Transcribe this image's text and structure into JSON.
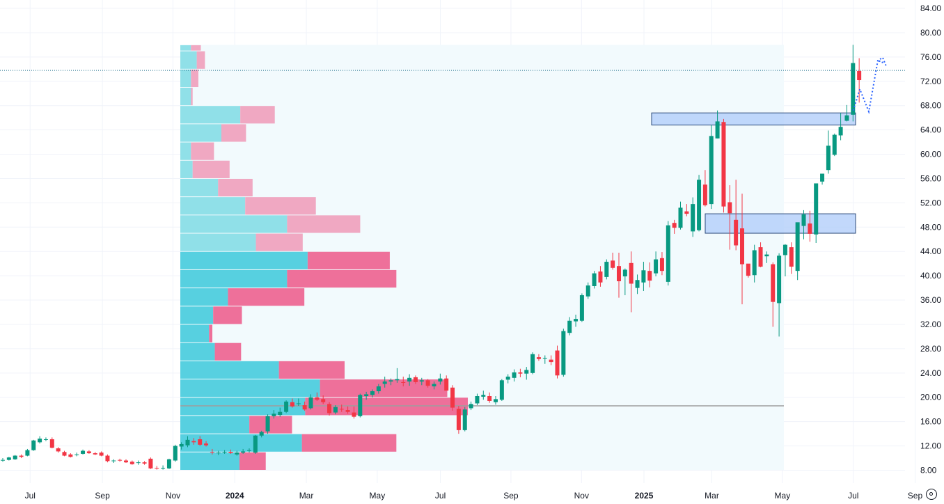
{
  "chart_data": {
    "type": "candlestick",
    "title": "",
    "xlabel": "",
    "ylabel": "",
    "ylim": [
      6,
      86
    ],
    "y_ticks": [
      "8.00",
      "12.00",
      "16.00",
      "20.00",
      "24.00",
      "28.00",
      "32.00",
      "36.00",
      "40.00",
      "44.00",
      "48.00",
      "52.00",
      "56.00",
      "60.00",
      "64.00",
      "68.00",
      "72.00",
      "76.00",
      "80.00",
      "84.00"
    ],
    "x_ticks": [
      {
        "label": "Jul",
        "bold": false,
        "t": 0.13
      },
      {
        "label": "Sep",
        "bold": false,
        "t": 2.27
      },
      {
        "label": "Nov",
        "bold": false,
        "t": 4.36
      },
      {
        "label": "2024",
        "bold": true,
        "t": 6.19
      },
      {
        "label": "Mar",
        "bold": false,
        "t": 8.31
      },
      {
        "label": "May",
        "bold": false,
        "t": 10.41
      },
      {
        "label": "Jul",
        "bold": false,
        "t": 12.28
      },
      {
        "label": "Sep",
        "bold": false,
        "t": 14.37
      },
      {
        "label": "Nov",
        "bold": false,
        "t": 16.46
      },
      {
        "label": "2025",
        "bold": true,
        "t": 18.31
      },
      {
        "label": "Mar",
        "bold": false,
        "t": 20.32
      },
      {
        "label": "May",
        "bold": false,
        "t": 22.41
      },
      {
        "label": "Jul",
        "bold": false,
        "t": 24.51
      },
      {
        "label": "Sep",
        "bold": false,
        "t": 26.34
      }
    ],
    "candles_weekly_ohlc": [
      [
        9.6,
        10.0,
        9.4,
        9.7
      ],
      [
        9.7,
        10.2,
        9.6,
        10.1
      ],
      [
        9.8,
        10.5,
        9.7,
        10.4
      ],
      [
        10.4,
        10.6,
        10.0,
        10.2
      ],
      [
        10.4,
        11.5,
        10.3,
        11.3
      ],
      [
        11.3,
        13.0,
        11.2,
        12.9
      ],
      [
        12.6,
        13.6,
        12.4,
        13.2
      ],
      [
        13.0,
        13.4,
        12.8,
        13.1
      ],
      [
        13.1,
        13.4,
        11.6,
        11.7
      ],
      [
        11.6,
        11.8,
        10.9,
        11.1
      ],
      [
        11.0,
        11.2,
        10.3,
        10.4
      ],
      [
        10.6,
        10.8,
        10.1,
        10.2
      ],
      [
        10.5,
        10.9,
        10.3,
        10.6
      ],
      [
        10.7,
        11.4,
        10.6,
        11.2
      ],
      [
        11.1,
        11.3,
        10.7,
        10.8
      ],
      [
        10.8,
        11.0,
        10.5,
        10.6
      ],
      [
        10.9,
        11.1,
        10.3,
        10.4
      ],
      [
        10.4,
        10.6,
        9.3,
        9.5
      ],
      [
        9.5,
        9.8,
        9.2,
        9.6
      ],
      [
        9.7,
        9.9,
        9.4,
        9.6
      ],
      [
        9.6,
        9.8,
        9.2,
        9.3
      ],
      [
        9.4,
        9.6,
        8.9,
        9.0
      ],
      [
        9.2,
        9.6,
        8.9,
        9.3
      ],
      [
        9.3,
        9.5,
        8.9,
        9.1
      ],
      [
        9.9,
        10.1,
        8.2,
        8.3
      ],
      [
        8.4,
        8.7,
        8.1,
        8.3
      ],
      [
        8.3,
        8.8,
        8.1,
        8.4
      ],
      [
        8.3,
        9.9,
        8.2,
        9.8
      ],
      [
        9.6,
        12.2,
        9.4,
        12.0
      ],
      [
        11.9,
        12.6,
        11.4,
        12.3
      ],
      [
        12.1,
        13.6,
        11.8,
        13.0
      ],
      [
        12.8,
        13.3,
        12.2,
        12.6
      ],
      [
        13.1,
        13.6,
        12.0,
        12.2
      ],
      [
        12.4,
        12.8,
        11.9,
        12.1
      ],
      [
        11.0,
        11.5,
        10.6,
        10.9
      ],
      [
        10.8,
        11.2,
        10.5,
        10.9
      ],
      [
        10.9,
        11.3,
        10.7,
        11.0
      ],
      [
        11.0,
        11.4,
        10.7,
        10.8
      ],
      [
        10.6,
        11.2,
        10.4,
        10.9
      ],
      [
        10.9,
        11.5,
        10.7,
        11.1
      ],
      [
        11.2,
        11.6,
        10.9,
        11.3
      ],
      [
        10.9,
        13.8,
        10.7,
        13.7
      ],
      [
        13.7,
        14.5,
        13.4,
        14.3
      ],
      [
        14.4,
        17.2,
        14.0,
        16.9
      ],
      [
        16.9,
        17.9,
        16.5,
        17.3
      ],
      [
        17.1,
        18.3,
        16.8,
        17.6
      ],
      [
        17.6,
        19.5,
        17.4,
        19.3
      ],
      [
        19.2,
        19.8,
        18.3,
        18.5
      ],
      [
        19.0,
        19.8,
        18.6,
        19.0
      ],
      [
        18.7,
        19.3,
        17.8,
        18.0
      ],
      [
        18.2,
        20.5,
        18.0,
        20.0
      ],
      [
        20.0,
        20.8,
        19.4,
        19.6
      ],
      [
        19.7,
        20.3,
        18.9,
        19.2
      ],
      [
        18.9,
        19.2,
        17.0,
        17.4
      ],
      [
        17.5,
        18.7,
        17.2,
        18.4
      ],
      [
        18.1,
        18.8,
        17.6,
        18.0
      ],
      [
        17.9,
        18.5,
        17.3,
        17.6
      ],
      [
        17.5,
        18.5,
        16.5,
        16.8
      ],
      [
        16.9,
        20.6,
        16.7,
        20.4
      ],
      [
        20.2,
        20.9,
        19.6,
        20.5
      ],
      [
        20.4,
        21.3,
        20.0,
        21.0
      ],
      [
        21.0,
        22.2,
        20.6,
        21.8
      ],
      [
        22.2,
        23.4,
        21.6,
        22.6
      ],
      [
        22.6,
        23.1,
        22.0,
        22.8
      ],
      [
        22.8,
        24.8,
        22.4,
        23.0
      ],
      [
        22.5,
        23.4,
        21.8,
        22.4
      ],
      [
        22.6,
        23.8,
        21.9,
        23.2
      ],
      [
        23.3,
        23.6,
        22.2,
        22.5
      ],
      [
        22.6,
        23.2,
        22.0,
        22.8
      ],
      [
        22.8,
        23.0,
        21.6,
        21.9
      ],
      [
        21.8,
        22.6,
        21.3,
        22.2
      ],
      [
        22.6,
        23.9,
        22.1,
        23.1
      ],
      [
        23.1,
        23.6,
        21.3,
        21.1
      ],
      [
        21.6,
        22.0,
        17.8,
        18.3
      ],
      [
        18.1,
        18.6,
        14.0,
        14.6
      ],
      [
        14.6,
        18.4,
        14.4,
        18.0
      ],
      [
        18.2,
        19.3,
        17.9,
        18.9
      ],
      [
        19.0,
        20.6,
        18.7,
        20.2
      ],
      [
        20.1,
        21.1,
        19.6,
        20.4
      ],
      [
        20.2,
        20.8,
        19.1,
        19.4
      ],
      [
        19.2,
        20.2,
        18.8,
        19.7
      ],
      [
        19.6,
        23.0,
        19.4,
        22.8
      ],
      [
        22.9,
        23.8,
        22.3,
        23.4
      ],
      [
        23.2,
        24.6,
        22.6,
        24.1
      ],
      [
        24.1,
        24.7,
        23.3,
        23.9
      ],
      [
        23.9,
        25.0,
        22.9,
        24.5
      ],
      [
        24.0,
        27.4,
        23.8,
        27.1
      ],
      [
        26.6,
        27.1,
        26.0,
        26.3
      ],
      [
        26.4,
        26.9,
        25.5,
        26.5
      ],
      [
        26.2,
        26.9,
        25.3,
        25.8
      ],
      [
        27.7,
        28.5,
        23.1,
        23.6
      ],
      [
        23.7,
        31.3,
        23.4,
        30.9
      ],
      [
        30.6,
        33.2,
        30.2,
        32.6
      ],
      [
        32.5,
        33.6,
        31.6,
        32.9
      ],
      [
        32.6,
        37.1,
        32.4,
        36.8
      ],
      [
        36.6,
        38.9,
        36.2,
        38.4
      ],
      [
        38.3,
        40.8,
        37.9,
        40.4
      ],
      [
        40.7,
        41.6,
        38.2,
        38.9
      ],
      [
        39.8,
        42.7,
        39.4,
        42.3
      ],
      [
        42.5,
        43.8,
        41.0,
        41.3
      ],
      [
        41.6,
        43.8,
        36.4,
        39.1
      ],
      [
        39.9,
        41.2,
        36.8,
        41.0
      ],
      [
        42.1,
        44.0,
        34.0,
        38.7
      ],
      [
        38.0,
        40.2,
        37.0,
        39.3
      ],
      [
        38.9,
        42.3,
        37.5,
        40.9
      ],
      [
        40.8,
        42.2,
        38.1,
        39.2
      ],
      [
        40.4,
        44.0,
        39.9,
        42.7
      ],
      [
        42.9,
        43.9,
        40.1,
        40.8
      ],
      [
        39.0,
        49.0,
        38.4,
        48.3
      ],
      [
        48.7,
        49.2,
        46.9,
        47.9
      ],
      [
        47.9,
        52.2,
        47.6,
        51.2
      ],
      [
        50.6,
        51.8,
        49.8,
        50.2
      ],
      [
        47.3,
        52.9,
        46.4,
        51.8
      ],
      [
        47.5,
        56.6,
        47.3,
        55.8
      ],
      [
        55.0,
        57.4,
        51.4,
        51.6
      ],
      [
        51.8,
        64.8,
        51.0,
        63.0
      ],
      [
        62.6,
        67.2,
        62.6,
        65.4
      ],
      [
        65.3,
        65.8,
        50.4,
        51.4
      ],
      [
        52.1,
        54.9,
        44.3,
        50.3
      ],
      [
        49.2,
        55.8,
        44.2,
        45.0
      ],
      [
        47.8,
        53.5,
        35.3,
        41.9
      ],
      [
        42.0,
        41.9,
        39.7,
        40.0
      ],
      [
        40.1,
        45.1,
        38.9,
        44.2
      ],
      [
        44.7,
        45.5,
        41.4,
        41.5
      ],
      [
        43.2,
        44.0,
        42.1,
        43.5
      ],
      [
        41.9,
        42.2,
        31.6,
        35.7
      ],
      [
        35.5,
        43.7,
        30.0,
        43.3
      ],
      [
        43.4,
        45.2,
        39.9,
        45.1
      ],
      [
        44.7,
        45.5,
        40.3,
        41.5
      ],
      [
        40.8,
        47.9,
        39.3,
        48.8
      ],
      [
        48.2,
        50.8,
        46.0,
        50.1
      ],
      [
        48.6,
        50.7,
        45.6,
        46.9
      ],
      [
        46.8,
        51.8,
        45.4,
        55.2
      ],
      [
        55.5,
        56.5,
        55.0,
        56.8
      ],
      [
        57.4,
        63.9,
        56.8,
        61.4
      ],
      [
        59.9,
        63.4,
        59.7,
        63.2
      ],
      [
        63.1,
        66.8,
        62.3,
        64.5
      ],
      [
        65.5,
        68.1,
        65.4,
        66.4
      ],
      [
        66.5,
        78.0,
        65.4,
        75.0
      ],
      [
        73.7,
        75.8,
        68.5,
        72.2
      ]
    ],
    "volume_profile": [
      {
        "lo": 8,
        "hi": 11,
        "up": 0.72,
        "down": 0.32
      },
      {
        "lo": 11,
        "hi": 14,
        "up": 1.48,
        "down": 1.15
      },
      {
        "lo": 14,
        "hi": 17,
        "up": 0.84,
        "down": 0.52
      },
      {
        "lo": 17,
        "hi": 20,
        "up": 1.52,
        "down": 1.98
      },
      {
        "lo": 20,
        "hi": 23,
        "up": 1.7,
        "down": 1.55
      },
      {
        "lo": 23,
        "hi": 26,
        "up": 1.2,
        "down": 0.8
      },
      {
        "lo": 26,
        "hi": 29,
        "up": 0.42,
        "down": 0.32
      },
      {
        "lo": 29,
        "hi": 32,
        "up": 0.35,
        "down": 0.04
      },
      {
        "lo": 32,
        "hi": 35,
        "up": 0.4,
        "down": 0.35
      },
      {
        "lo": 35,
        "hi": 38,
        "up": 0.58,
        "down": 0.93
      },
      {
        "lo": 38,
        "hi": 41,
        "up": 1.3,
        "down": 1.33
      },
      {
        "lo": 41,
        "hi": 44,
        "up": 1.55,
        "down": 1.0
      },
      {
        "lo": 44,
        "hi": 47,
        "up": 0.92,
        "down": 0.57
      },
      {
        "lo": 47,
        "hi": 50,
        "up": 1.3,
        "down": 0.89
      },
      {
        "lo": 50,
        "hi": 53,
        "up": 0.79,
        "down": 0.86
      },
      {
        "lo": 53,
        "hi": 56,
        "up": 0.46,
        "down": 0.42
      },
      {
        "lo": 56,
        "hi": 59,
        "up": 0.15,
        "down": 0.45
      },
      {
        "lo": 59,
        "hi": 62,
        "up": 0.13,
        "down": 0.28
      },
      {
        "lo": 62,
        "hi": 65,
        "up": 0.5,
        "down": 0.3
      },
      {
        "lo": 65,
        "hi": 68,
        "up": 0.73,
        "down": 0.42
      },
      {
        "lo": 68,
        "hi": 71,
        "up": 0.13,
        "down": 0.02
      },
      {
        "lo": 71,
        "hi": 74,
        "up": 0.13,
        "down": 0.09
      },
      {
        "lo": 74,
        "hi": 77,
        "up": 0.2,
        "down": 0.1
      },
      {
        "lo": 77,
        "hi": 78,
        "up": 0.13,
        "down": 0.12
      }
    ],
    "point_of_control": 18.6,
    "current_price": 73.8,
    "zones": [
      {
        "y_low": 64.8,
        "y_high": 66.8
      },
      {
        "y_low": 47.0,
        "y_high": 50.2
      }
    ],
    "projection_path": [
      [
        67.0,
        67.2
      ],
      [
        67.8,
        70.7
      ],
      [
        68.9,
        67.0
      ],
      [
        70.0,
        75.4
      ],
      [
        70.6,
        75.9
      ],
      [
        71.0,
        74.6
      ]
    ],
    "colors": {
      "up": "#26a69a",
      "down": "#ef5350",
      "up_candle": "#089981",
      "down_candle": "#f23645",
      "profile_up_light": "#90e0e8",
      "profile_down_light": "#f0a8c2",
      "profile_up_dark": "#57d0e0",
      "profile_down_dark": "#ee709a",
      "zone_fill": "#aecbfa",
      "zone_border": "#2b4a7a",
      "projection": "#2962ff",
      "grid": "#f0f3fa"
    }
  }
}
